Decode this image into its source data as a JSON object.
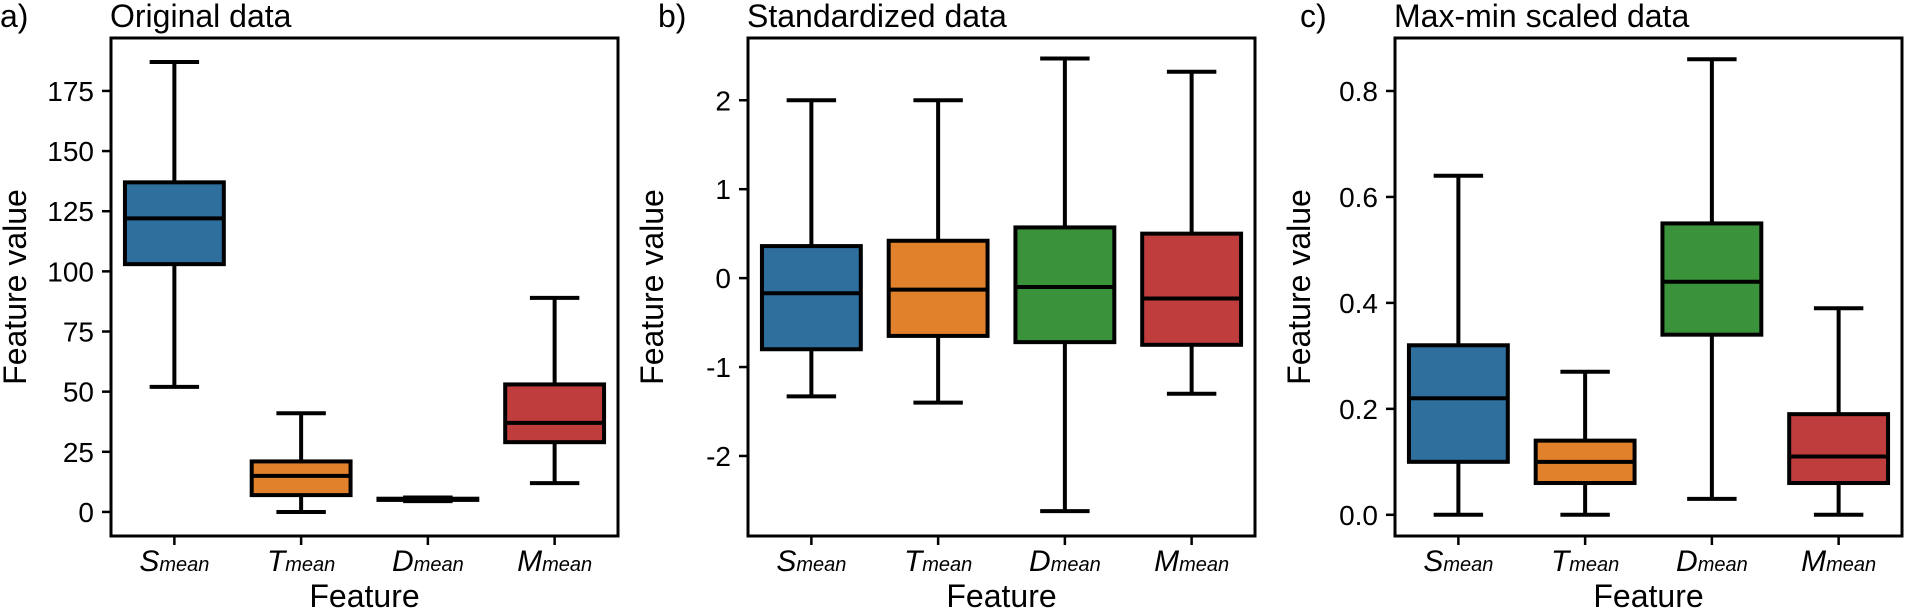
{
  "chart_data": [
    {
      "type": "box",
      "panel_label": "a)",
      "title": "Original data",
      "xlabel": "Feature",
      "ylabel": "Feature value",
      "ylim": [
        -10,
        197
      ],
      "yticks": [
        0,
        25,
        50,
        75,
        100,
        125,
        150,
        175
      ],
      "ytick_labels": [
        "0",
        "25",
        "50",
        "75",
        "100",
        "125",
        "150",
        "175"
      ],
      "categories": [
        {
          "base": "S",
          "sub": "mean"
        },
        {
          "base": "T",
          "sub": "mean"
        },
        {
          "base": "D",
          "sub": "mean"
        },
        {
          "base": "M",
          "sub": "mean"
        }
      ],
      "boxes": [
        {
          "whisker_low": 52,
          "q1": 103,
          "median": 122,
          "q3": 137,
          "whisker_high": 187,
          "color": "#2e6f9e"
        },
        {
          "whisker_low": 0,
          "q1": 7,
          "median": 15,
          "q3": 21,
          "whisker_high": 41,
          "color": "#e1812c"
        },
        {
          "whisker_low": 4.5,
          "q1": 5,
          "median": 5.2,
          "q3": 5.5,
          "whisker_high": 6,
          "color": "#3a923a"
        },
        {
          "whisker_low": 12,
          "q1": 29,
          "median": 37,
          "q3": 53,
          "whisker_high": 89,
          "color": "#c03d3e"
        }
      ]
    },
    {
      "type": "box",
      "panel_label": "b)",
      "title": "Standardized data",
      "xlabel": "Feature",
      "ylabel": "Feature value",
      "ylim": [
        -2.9,
        2.7
      ],
      "yticks": [
        -2,
        -1,
        0,
        1,
        2
      ],
      "ytick_labels": [
        "-2",
        "-1",
        "0",
        "1",
        "2"
      ],
      "categories": [
        {
          "base": "S",
          "sub": "mean"
        },
        {
          "base": "T",
          "sub": "mean"
        },
        {
          "base": "D",
          "sub": "mean"
        },
        {
          "base": "M",
          "sub": "mean"
        }
      ],
      "boxes": [
        {
          "whisker_low": -1.33,
          "q1": -0.8,
          "median": -0.17,
          "q3": 0.36,
          "whisker_high": 2.0,
          "color": "#2e6f9e"
        },
        {
          "whisker_low": -1.4,
          "q1": -0.65,
          "median": -0.13,
          "q3": 0.42,
          "whisker_high": 2.0,
          "color": "#e1812c"
        },
        {
          "whisker_low": -2.62,
          "q1": -0.72,
          "median": -0.1,
          "q3": 0.57,
          "whisker_high": 2.47,
          "color": "#3a923a"
        },
        {
          "whisker_low": -1.3,
          "q1": -0.75,
          "median": -0.23,
          "q3": 0.5,
          "whisker_high": 2.32,
          "color": "#c03d3e"
        }
      ]
    },
    {
      "type": "box",
      "panel_label": "c)",
      "title": "Max-min scaled data",
      "xlabel": "Feature",
      "ylabel": "Feature value",
      "ylim": [
        -0.04,
        0.9
      ],
      "yticks": [
        0.0,
        0.2,
        0.4,
        0.6,
        0.8
      ],
      "ytick_labels": [
        "0.0",
        "0.2",
        "0.4",
        "0.6",
        "0.8"
      ],
      "categories": [
        {
          "base": "S",
          "sub": "mean"
        },
        {
          "base": "T",
          "sub": "mean"
        },
        {
          "base": "D",
          "sub": "mean"
        },
        {
          "base": "M",
          "sub": "mean"
        }
      ],
      "boxes": [
        {
          "whisker_low": 0.0,
          "q1": 0.1,
          "median": 0.22,
          "q3": 0.32,
          "whisker_high": 0.64,
          "color": "#2e6f9e"
        },
        {
          "whisker_low": 0.0,
          "q1": 0.06,
          "median": 0.1,
          "q3": 0.14,
          "whisker_high": 0.27,
          "color": "#e1812c"
        },
        {
          "whisker_low": 0.03,
          "q1": 0.34,
          "median": 0.44,
          "q3": 0.55,
          "whisker_high": 0.86,
          "color": "#3a923a"
        },
        {
          "whisker_low": 0.0,
          "q1": 0.06,
          "median": 0.11,
          "q3": 0.19,
          "whisker_high": 0.39,
          "color": "#c03d3e"
        }
      ]
    }
  ]
}
